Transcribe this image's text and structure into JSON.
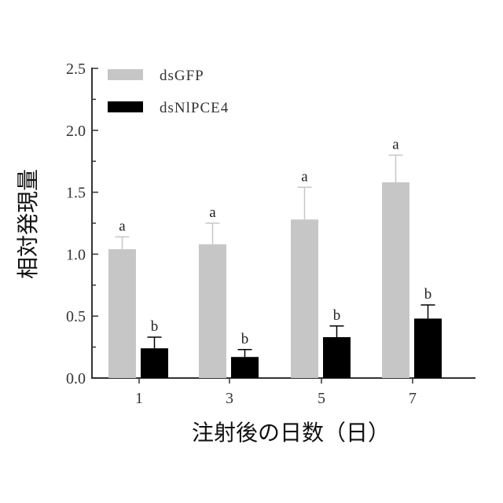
{
  "chart_data": {
    "type": "bar",
    "title": "",
    "xlabel": "注射後の日数（日）",
    "ylabel": "相対発現量",
    "categories": [
      "1",
      "3",
      "5",
      "7"
    ],
    "ylim": [
      0,
      2.5
    ],
    "yticks": [
      "0.0",
      "0.5",
      "1.0",
      "1.5",
      "2.0",
      "2.5"
    ],
    "legend_position": "top-left",
    "series": [
      {
        "name": "dsGFP",
        "color": "#c6c6c6",
        "values": [
          1.04,
          1.08,
          1.28,
          1.58
        ],
        "errors": [
          0.1,
          0.17,
          0.26,
          0.22
        ],
        "labels": [
          "a",
          "a",
          "a",
          "a"
        ]
      },
      {
        "name": "dsNlPCE4",
        "color": "#000000",
        "values": [
          0.24,
          0.17,
          0.33,
          0.48
        ],
        "errors": [
          0.09,
          0.06,
          0.09,
          0.11
        ],
        "labels": [
          "b",
          "b",
          "b",
          "b"
        ]
      }
    ]
  }
}
